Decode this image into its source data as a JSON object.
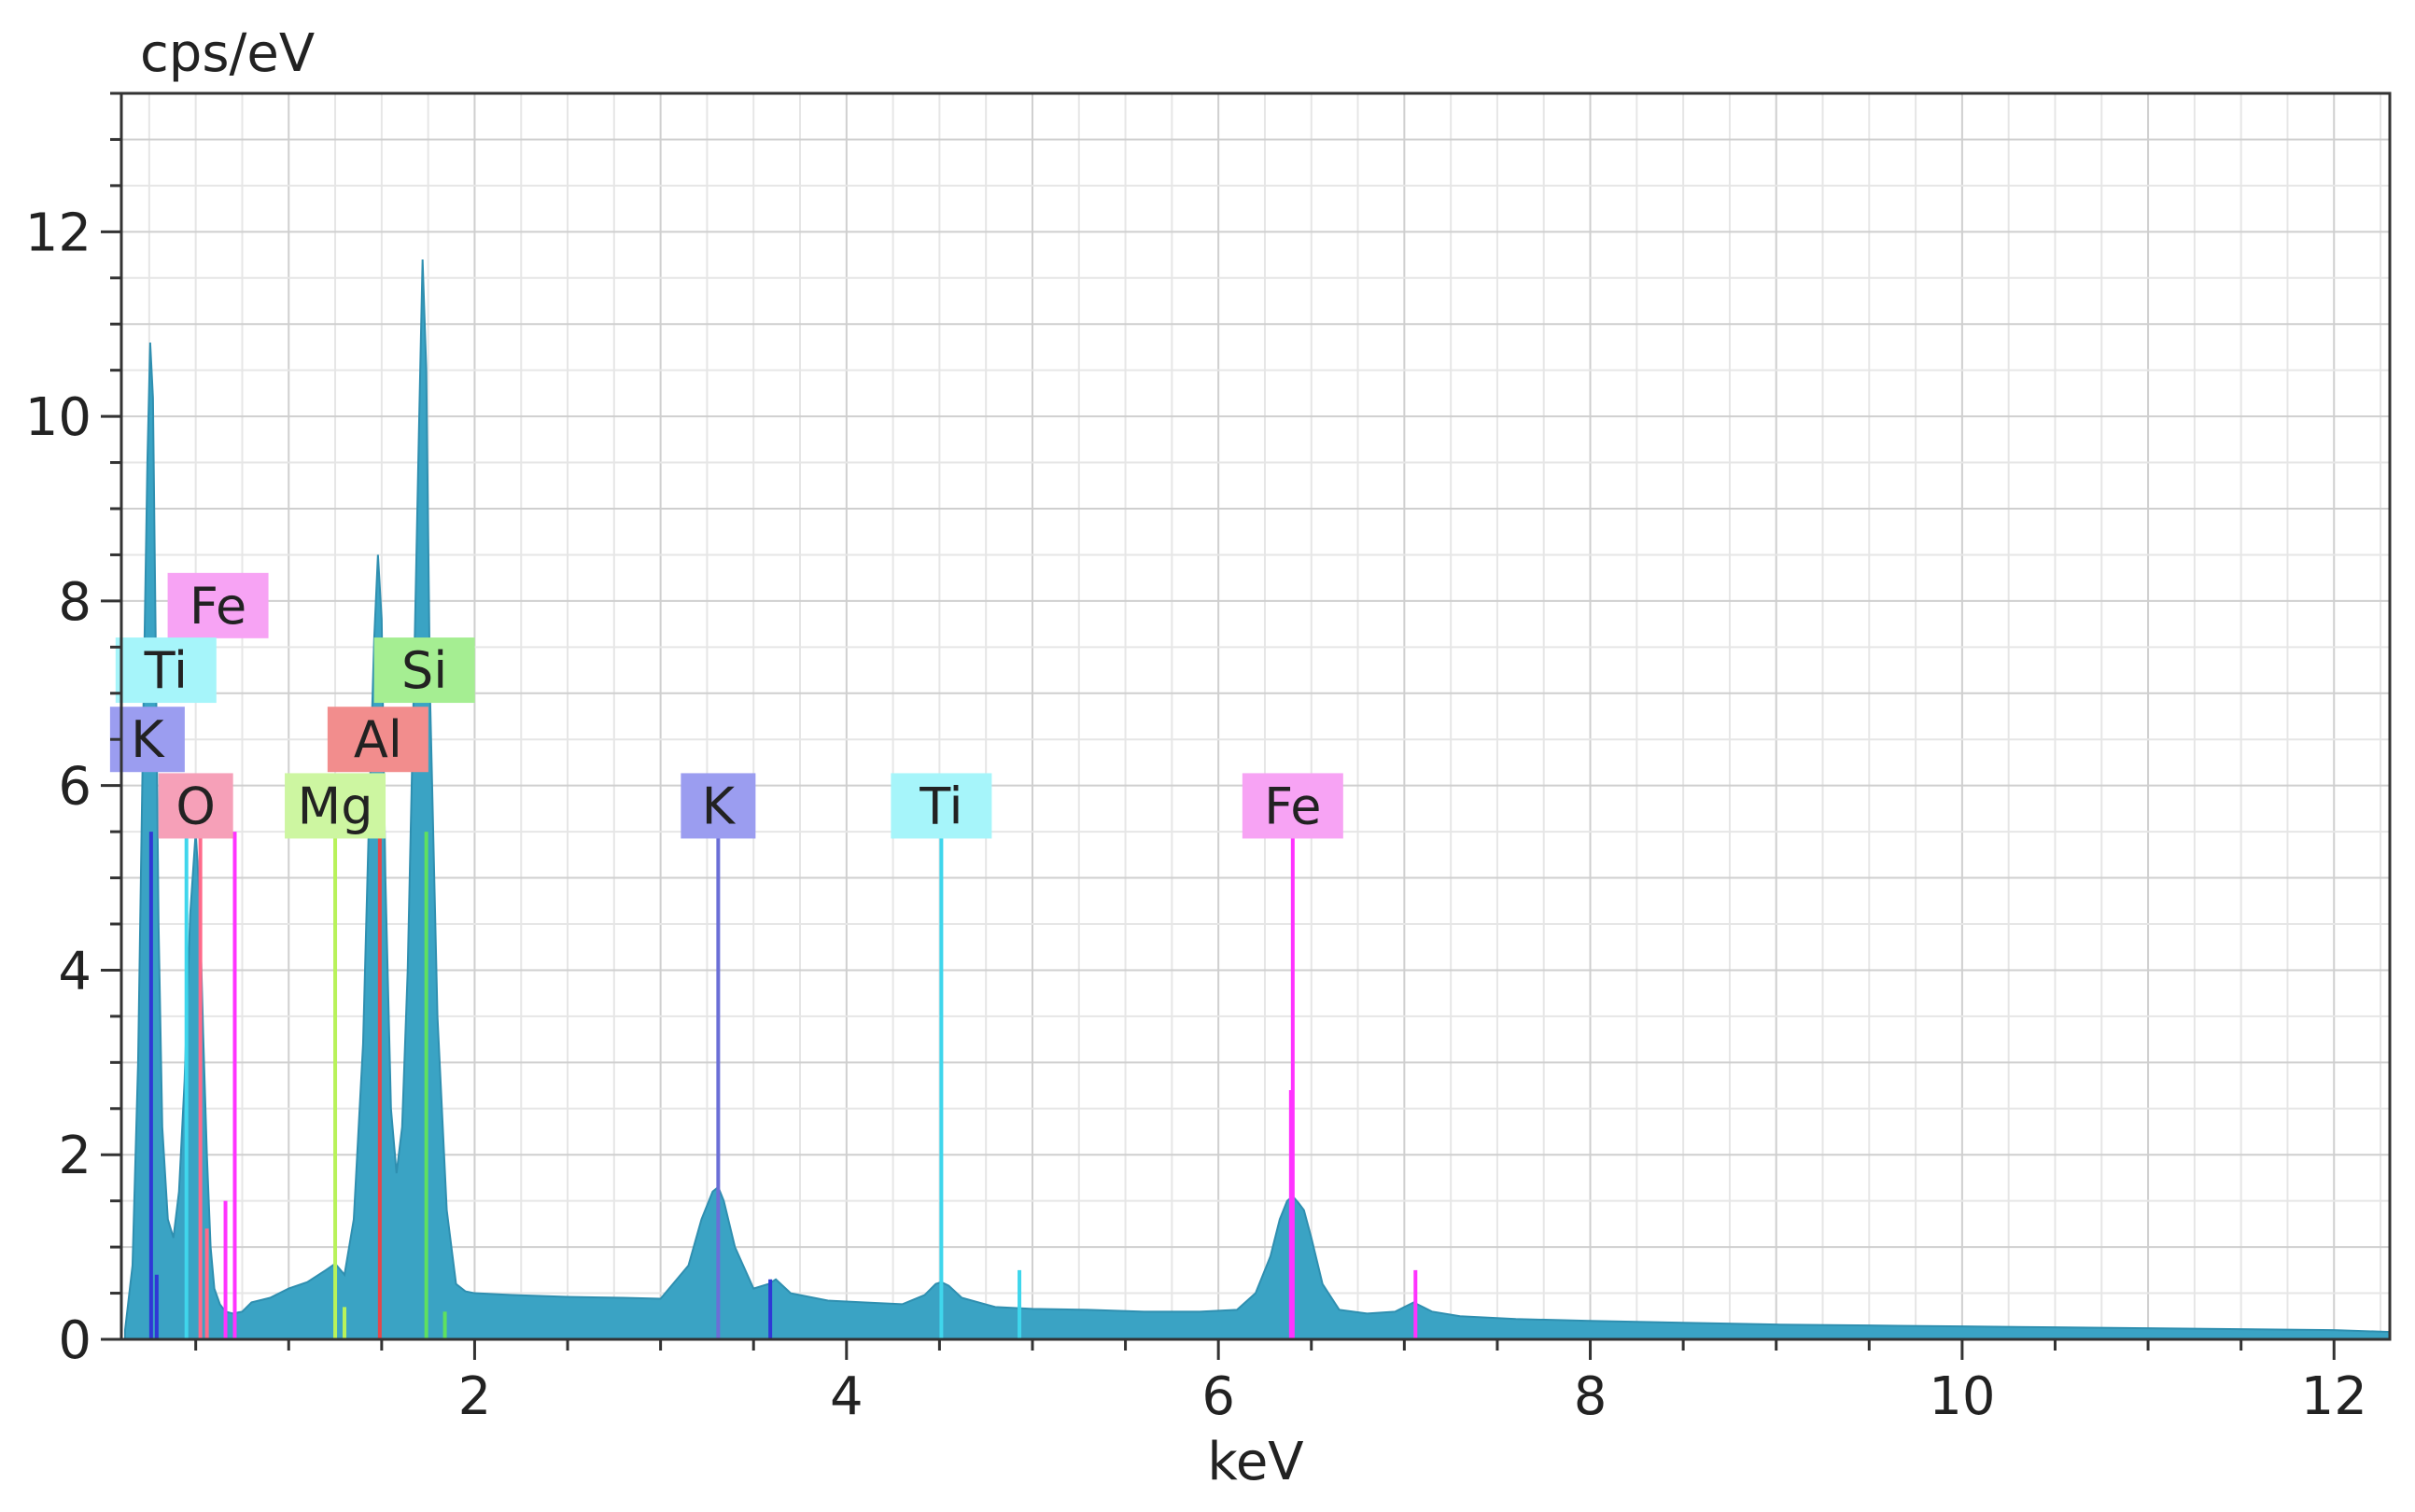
{
  "chart_data": {
    "type": "area",
    "title": "",
    "xlabel": "keV",
    "ylabel": "cps/eV",
    "xlim": [
      0.1,
      12.3
    ],
    "ylim": [
      0,
      13.5
    ],
    "x_ticks": [
      2,
      4,
      6,
      8,
      10,
      12
    ],
    "y_ticks": [
      0,
      2,
      4,
      6,
      8,
      10,
      12
    ],
    "grid": true,
    "spectrum_color": "#3aa3c4",
    "spectrum": {
      "x": [
        0.12,
        0.16,
        0.19,
        0.22,
        0.24,
        0.255,
        0.27,
        0.285,
        0.3,
        0.32,
        0.35,
        0.38,
        0.41,
        0.44,
        0.47,
        0.5,
        0.52,
        0.54,
        0.56,
        0.58,
        0.6,
        0.63,
        0.66,
        0.7,
        0.75,
        0.8,
        0.9,
        1.0,
        1.1,
        1.2,
        1.25,
        1.3,
        1.35,
        1.4,
        1.43,
        1.46,
        1.48,
        1.5,
        1.52,
        1.55,
        1.58,
        1.61,
        1.64,
        1.67,
        1.7,
        1.72,
        1.74,
        1.76,
        1.8,
        1.85,
        1.9,
        1.95,
        2.0,
        2.2,
        2.5,
        2.8,
        3.0,
        3.15,
        3.22,
        3.28,
        3.31,
        3.34,
        3.4,
        3.5,
        3.58,
        3.62,
        3.7,
        3.9,
        4.1,
        4.3,
        4.42,
        4.48,
        4.51,
        4.55,
        4.62,
        4.8,
        5.0,
        5.3,
        5.6,
        5.9,
        6.1,
        6.2,
        6.28,
        6.33,
        6.37,
        6.4,
        6.43,
        6.46,
        6.5,
        6.56,
        6.65,
        6.8,
        6.95,
        7.05,
        7.15,
        7.3,
        7.6,
        8.0,
        8.5,
        9.0,
        9.5,
        10.0,
        10.5,
        11.0,
        11.5,
        12.0,
        12.3
      ],
      "y": [
        0.1,
        0.8,
        3.0,
        7.0,
        9.5,
        10.8,
        10.2,
        7.5,
        4.5,
        2.3,
        1.3,
        1.1,
        1.6,
        2.8,
        4.6,
        5.5,
        4.8,
        3.3,
        2.0,
        1.0,
        0.55,
        0.38,
        0.3,
        0.28,
        0.3,
        0.4,
        0.45,
        0.55,
        0.62,
        0.75,
        0.82,
        0.7,
        1.3,
        3.2,
        5.5,
        7.6,
        8.5,
        7.8,
        5.0,
        2.5,
        1.8,
        2.3,
        4.0,
        6.8,
        9.8,
        11.7,
        10.5,
        7.0,
        3.5,
        1.4,
        0.6,
        0.52,
        0.5,
        0.48,
        0.46,
        0.45,
        0.44,
        0.8,
        1.3,
        1.6,
        1.65,
        1.5,
        1.0,
        0.55,
        0.6,
        0.65,
        0.5,
        0.42,
        0.4,
        0.38,
        0.48,
        0.6,
        0.62,
        0.58,
        0.45,
        0.35,
        0.33,
        0.32,
        0.3,
        0.3,
        0.32,
        0.5,
        0.9,
        1.3,
        1.5,
        1.55,
        1.48,
        1.4,
        1.1,
        0.6,
        0.32,
        0.28,
        0.3,
        0.4,
        0.3,
        0.25,
        0.22,
        0.2,
        0.18,
        0.16,
        0.15,
        0.14,
        0.13,
        0.12,
        0.11,
        0.1,
        0.08
      ]
    },
    "element_lines": [
      {
        "element": "K",
        "energy": 0.26,
        "height": 5.5,
        "color": "#2f38d6"
      },
      {
        "element": "Ti",
        "energy": 0.45,
        "height": 5.5,
        "color": "#3fd6ec"
      },
      {
        "element": "O",
        "energy": 0.525,
        "height": 5.5,
        "color": "#ff6a8a"
      },
      {
        "element": "Fe",
        "energy": 0.71,
        "height": 5.5,
        "color": "#ff33ff"
      },
      {
        "element": "Mg",
        "energy": 1.25,
        "height": 5.5,
        "color": "#b8f25a"
      },
      {
        "element": "Al",
        "energy": 1.49,
        "height": 5.5,
        "color": "#e4474a"
      },
      {
        "element": "Si",
        "energy": 1.74,
        "height": 5.5,
        "color": "#5fe05f"
      },
      {
        "element": "K",
        "energy": 3.31,
        "height": 5.5,
        "color": "#6b6fd6"
      },
      {
        "element": "Ti",
        "energy": 4.51,
        "height": 5.5,
        "color": "#3fd6ec"
      },
      {
        "element": "Fe",
        "energy": 6.4,
        "height": 5.5,
        "color": "#ff33ff"
      }
    ],
    "minor_lines": [
      {
        "energy": 0.29,
        "height": 0.7,
        "color": "#2f38d6"
      },
      {
        "energy": 0.66,
        "height": 1.5,
        "color": "#ff33ff"
      },
      {
        "energy": 0.56,
        "height": 1.2,
        "color": "#ff6a8a"
      },
      {
        "energy": 1.3,
        "height": 0.35,
        "color": "#b8f25a"
      },
      {
        "energy": 1.84,
        "height": 0.3,
        "color": "#5fe05f"
      },
      {
        "energy": 3.59,
        "height": 0.65,
        "color": "#2f38d6"
      },
      {
        "energy": 4.93,
        "height": 0.75,
        "color": "#3fd6ec"
      },
      {
        "energy": 6.39,
        "height": 2.7,
        "color": "#ff33ff"
      },
      {
        "energy": 7.06,
        "height": 0.75,
        "color": "#ff33ff"
      }
    ],
    "peak_labels": [
      {
        "text": "Fe",
        "x": 0.62,
        "y": 7.95,
        "bg": "#f7a3f4"
      },
      {
        "text": "Ti",
        "x": 0.34,
        "y": 7.25,
        "bg": "#a6f5fa"
      },
      {
        "text": "Si",
        "x": 1.73,
        "y": 7.25,
        "bg": "#a5ee92"
      },
      {
        "text": "K",
        "x": 0.24,
        "y": 6.5,
        "bg": "#9b9df0"
      },
      {
        "text": "Al",
        "x": 1.48,
        "y": 6.5,
        "bg": "#f28d8d"
      },
      {
        "text": "O",
        "x": 0.5,
        "y": 5.78,
        "bg": "#f6a0b8"
      },
      {
        "text": "Mg",
        "x": 1.25,
        "y": 5.78,
        "bg": "#cdf6a1"
      },
      {
        "text": "K",
        "x": 3.31,
        "y": 5.78,
        "bg": "#9b9df0"
      },
      {
        "text": "Ti",
        "x": 4.51,
        "y": 5.78,
        "bg": "#a6f5fa"
      },
      {
        "text": "Fe",
        "x": 6.4,
        "y": 5.78,
        "bg": "#f7a3f4"
      }
    ]
  }
}
